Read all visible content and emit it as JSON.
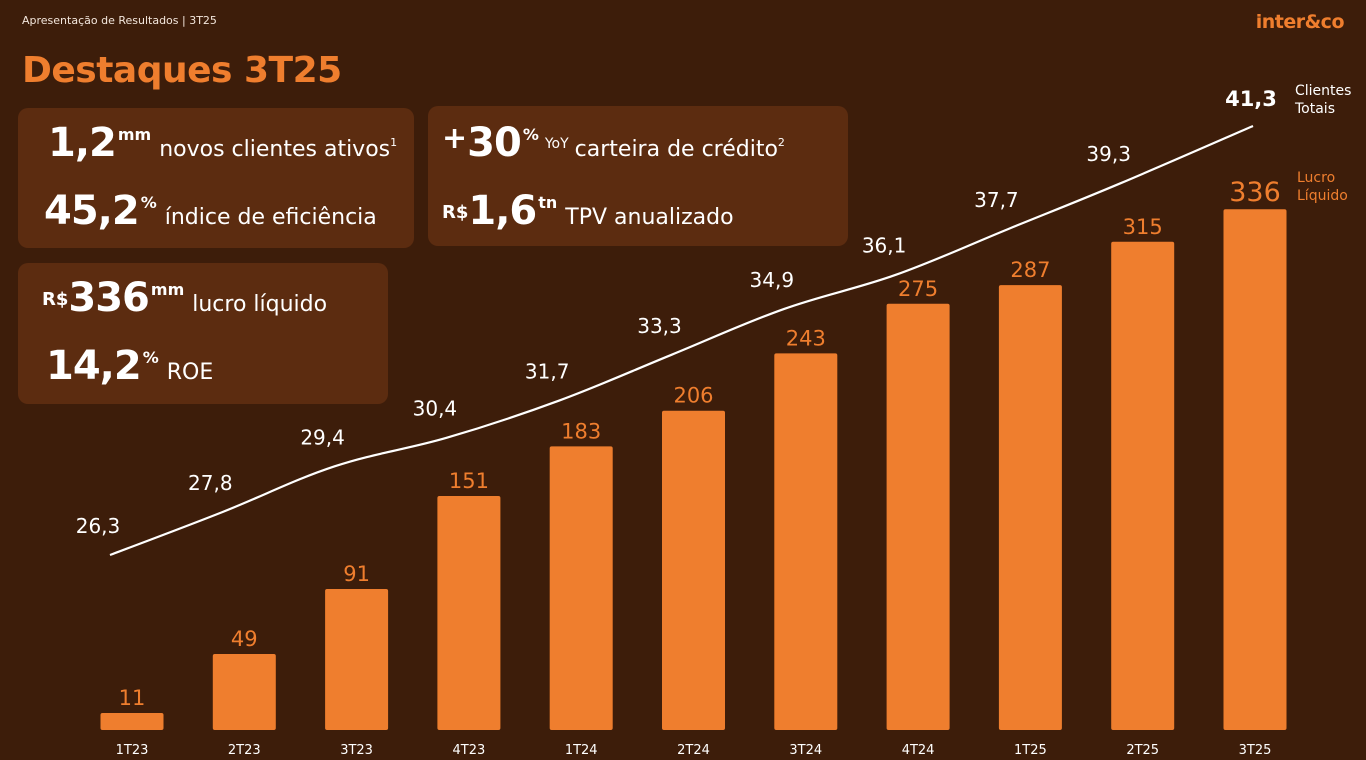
{
  "header": {
    "subtitle": "Apresentação de Resultados | 3T25",
    "logo": "inter&co",
    "title": "Destaques 3T25"
  },
  "kpis": {
    "clientes": {
      "value": "1,2",
      "unit": "mm",
      "label": "novos clientes ativos",
      "note": "1"
    },
    "eficiencia": {
      "value": "45,2",
      "unit": "%",
      "label": "índice de eficiência"
    },
    "credito": {
      "prefix": "+",
      "value": "30",
      "unit": "%",
      "qualifier": "YoY",
      "label": "carteira de crédito",
      "note": "2"
    },
    "tpv": {
      "prefix": "R$",
      "value": "1,6",
      "unit": "tn",
      "label": "TPV anualizado"
    },
    "lucro": {
      "prefix": "R$",
      "value": "336",
      "unit": "mm",
      "label": "lucro líquido"
    },
    "roe": {
      "value": "14,2",
      "unit": "%",
      "label": "ROE"
    }
  },
  "legend": {
    "clientes_line1": "Clientes",
    "clientes_line2": "Totais",
    "lucro_line1": "Lucro",
    "lucro_line2": "Líquido"
  },
  "colors": {
    "background": "#3d1d0a",
    "card": "#5c2c10",
    "accent": "#ef7e2e",
    "line": "#ffffff"
  },
  "chart_data": {
    "type": "bar",
    "categories": [
      "1T23",
      "2T23",
      "3T23",
      "4T23",
      "1T24",
      "2T24",
      "3T24",
      "4T24",
      "1T25",
      "2T25",
      "3T25"
    ],
    "series": [
      {
        "name": "Lucro Líquido",
        "type": "bar",
        "values": [
          11,
          49,
          91,
          151,
          183,
          206,
          243,
          275,
          287,
          315,
          336
        ]
      },
      {
        "name": "Clientes Totais",
        "type": "line",
        "values": [
          26.3,
          27.8,
          29.4,
          30.4,
          31.7,
          33.3,
          34.9,
          36.1,
          37.7,
          39.3,
          41.3
        ],
        "labels": [
          "26,3",
          "27,8",
          "29,4",
          "30,4",
          "31,7",
          "33,3",
          "34,9",
          "36,1",
          "37,7",
          "39,3",
          "41,3"
        ]
      }
    ],
    "grid": false,
    "legend_placement": "right"
  }
}
